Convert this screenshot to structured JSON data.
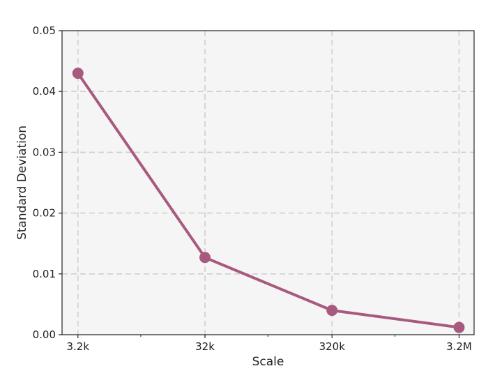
{
  "chart_data": {
    "type": "line",
    "title": "",
    "xlabel": "Scale",
    "ylabel": "Standard Deviation",
    "x_scale": "log",
    "x": [
      3200,
      32000,
      320000,
      3200000
    ],
    "x_tick_labels": [
      "3.2k",
      "32k",
      "320k",
      "3.2M"
    ],
    "xlim": [
      2400,
      4200000
    ],
    "ylim": [
      0,
      0.05
    ],
    "y_ticks": [
      0.0,
      0.01,
      0.02,
      0.03,
      0.04,
      0.05
    ],
    "y_tick_labels": [
      "0.00",
      "0.01",
      "0.02",
      "0.03",
      "0.04",
      "0.05"
    ],
    "series": [
      {
        "values": [
          0.043,
          0.0127,
          0.004,
          0.0012
        ],
        "color": "#a85a7e"
      }
    ],
    "grid": true,
    "grid_style": "dashed",
    "plot_background": "#f5f5f5",
    "legend": "none"
  }
}
